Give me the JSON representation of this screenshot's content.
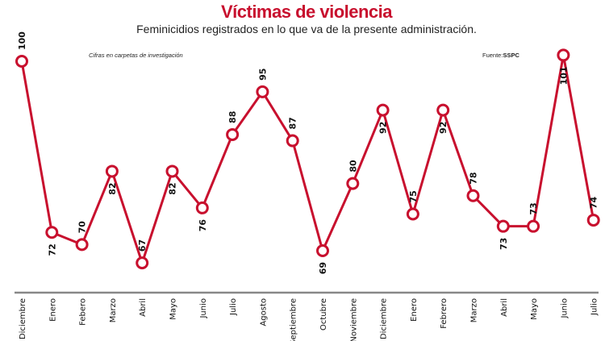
{
  "chart_data": {
    "type": "line",
    "title": "Víctimas de violencia",
    "subtitle": "Feminicidios registrados en lo que va de la presente administración.",
    "note": "Cifras en carpetas de investigación",
    "source_label": "Fuente:",
    "source": "SSPC",
    "categories": [
      "Diciembre",
      "Enero",
      "Febero",
      "Marzo",
      "Abril",
      "Mayo",
      "Junio",
      "Julio",
      "Agosto",
      "Septiembre",
      "Octubre",
      "Noviembre",
      "Diciembre",
      "Enero",
      "Febrero",
      "Marzo",
      "Abril",
      "Mayo",
      "Junio",
      "Julio"
    ],
    "values": [
      100,
      72,
      70,
      82,
      67,
      82,
      76,
      88,
      95,
      87,
      69,
      80,
      92,
      75,
      92,
      78,
      73,
      73,
      101,
      74
    ],
    "line_color": "#c8102e",
    "axis_color": "#888888",
    "grid": false
  }
}
